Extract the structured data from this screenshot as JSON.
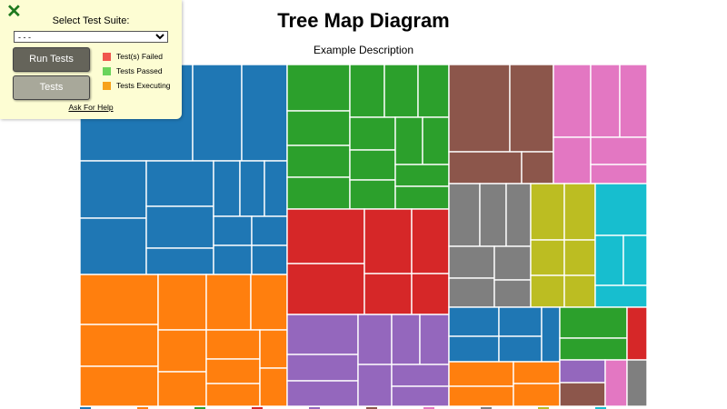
{
  "chart_data": {
    "type": "treemap",
    "title": "Tree Map Diagram",
    "description": "Example Description",
    "palette": [
      "#1f77b4",
      "#ff7f0e",
      "#2ca02c",
      "#d62728",
      "#9467bd",
      "#8c564b",
      "#e377c2",
      "#7f7f7f",
      "#bcbd22",
      "#17becf"
    ]
  },
  "test_panel": {
    "suite_label": "Select Test Suite:",
    "suite_selected": "- - -",
    "run_tests_label": "Run Tests",
    "tests_label": "Tests",
    "legend": [
      {
        "label": "Test(s) Failed",
        "color": "#f0564e"
      },
      {
        "label": "Tests Passed",
        "color": "#6ad45a"
      },
      {
        "label": "Tests Executing",
        "color": "#f7a21a"
      }
    ],
    "help_label": "Ask For Help"
  }
}
